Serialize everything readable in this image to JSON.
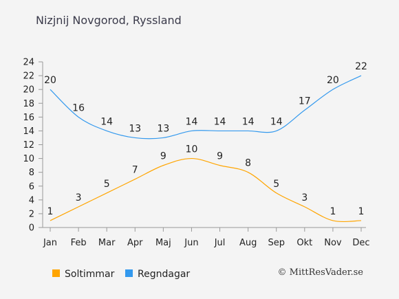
{
  "title": "Nizjnij Novgorod, Ryssland",
  "copyright": "© MittResVader.se",
  "chart_data": {
    "type": "line",
    "title": "Nizjnij Novgorod, Ryssland",
    "categories": [
      "Jan",
      "Feb",
      "Mar",
      "Apr",
      "Maj",
      "Jun",
      "Jul",
      "Aug",
      "Sep",
      "Okt",
      "Nov",
      "Dec"
    ],
    "y_ticks": [
      "0",
      "2",
      "4",
      "6",
      "8",
      "10",
      "12",
      "14",
      "16",
      "18",
      "20",
      "22",
      "24"
    ],
    "ylim": [
      0,
      24
    ],
    "grid": false,
    "legend_position": "bottom-left",
    "series": [
      {
        "name": "Soltimmar",
        "color": "#ffa500",
        "values": [
          1,
          3,
          5,
          7,
          9,
          10,
          9,
          8,
          5,
          3,
          1,
          1
        ]
      },
      {
        "name": "Regndagar",
        "color": "#3399ee",
        "values": [
          20,
          16,
          14,
          13,
          13,
          14,
          14,
          14,
          14,
          17,
          20,
          22
        ]
      }
    ]
  }
}
